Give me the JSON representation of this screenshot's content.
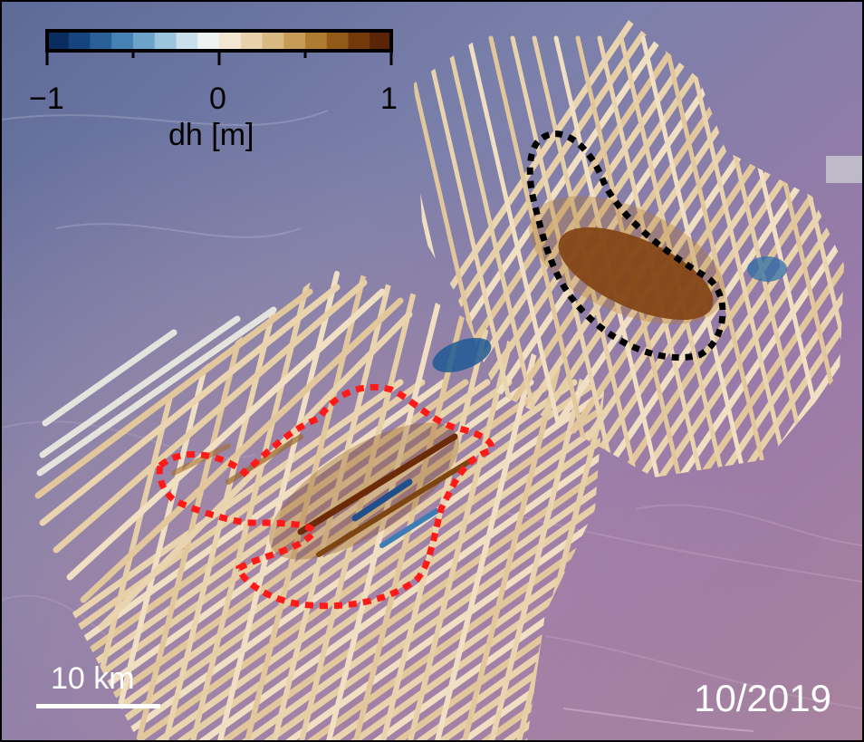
{
  "colorbar": {
    "min_label": "−1",
    "mid_label": "0",
    "max_label": "1",
    "title": "dh [m]",
    "colors": [
      "#082c5e",
      "#16447f",
      "#2a5f98",
      "#4681b3",
      "#6ea3c9",
      "#9cc3dc",
      "#c9dfe9",
      "#eef2f0",
      "#f3e6d1",
      "#e8d2ac",
      "#d9b982",
      "#c69c57",
      "#ad7c31",
      "#915a17",
      "#73390a",
      "#5a2506"
    ]
  },
  "scale_bar": {
    "label": "10 km"
  },
  "date": "10/2019",
  "colors": {
    "basemap_blue": "#7c7fa6",
    "basemap_purple": "#a07ba6",
    "track_neutral": "#ead4af",
    "anomaly_brown": "#6b2d08",
    "anomaly_blue": "#1f5590",
    "outline_black": "#000000",
    "outline_red": "#ff1a1a"
  }
}
